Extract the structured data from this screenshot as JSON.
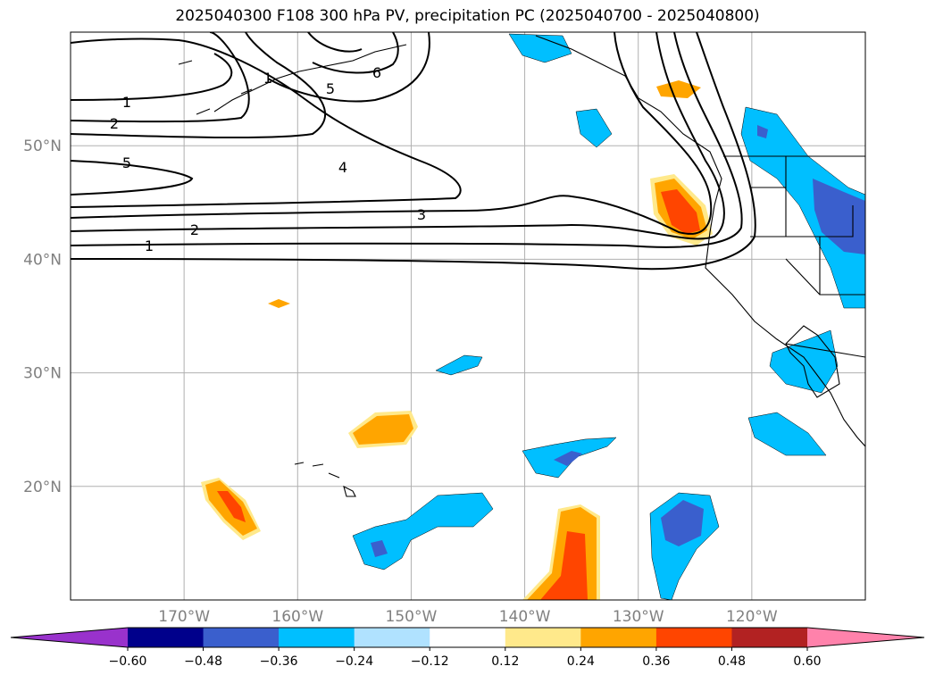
{
  "chart_data": {
    "type": "map",
    "title": "2025040300 F108 300 hPa PV, precipitation PC (2025040700 - 2025040800)",
    "lat_ticks": [
      "50°N",
      "40°N",
      "30°N",
      "20°N"
    ],
    "lat_values": [
      50,
      40,
      30,
      20
    ],
    "lon_ticks": [
      "170°W",
      "160°W",
      "150°W",
      "140°W",
      "130°W",
      "120°W"
    ],
    "lon_values": [
      -170,
      -160,
      -150,
      -140,
      -130,
      -120
    ],
    "extent": {
      "lon": [
        -180,
        -110
      ],
      "lat": [
        10,
        60
      ]
    },
    "grid": true,
    "colorbar": {
      "orientation": "horizontal",
      "extend": "both",
      "tick_labels": [
        "−0.60",
        "−0.48",
        "−0.36",
        "−0.24",
        "−0.12",
        "0.12",
        "0.24",
        "0.36",
        "0.48",
        "0.60"
      ],
      "levels": [
        -0.6,
        -0.48,
        -0.36,
        -0.24,
        -0.12,
        0.12,
        0.24,
        0.36,
        0.48,
        0.6
      ],
      "colors": [
        "#9932cc",
        "#00008b",
        "#3a5fcd",
        "#00bfff",
        "#b0e2ff",
        "#ffffff",
        "#ffe98b",
        "#ffa500",
        "#ff4500",
        "#b22222",
        "#ff82ab"
      ]
    },
    "pv_contour_labels": [
      "1",
      "2",
      "5",
      "4",
      "3",
      "2",
      "1",
      "5",
      "6",
      "1"
    ]
  }
}
